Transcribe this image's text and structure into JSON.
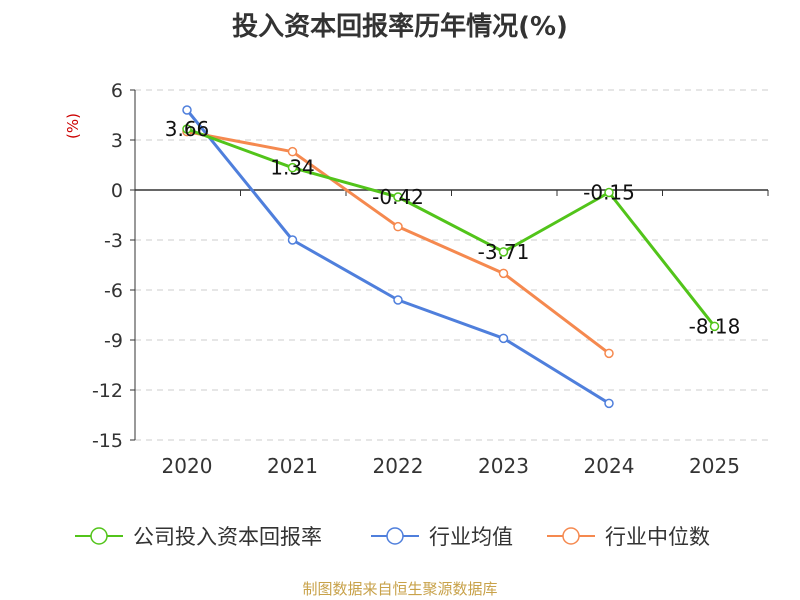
{
  "chart_data": {
    "type": "line",
    "title": "投入资本回报率历年情况(%)",
    "ylabel": "(%)",
    "xlabel": "",
    "categories": [
      "2020",
      "2021",
      "2022",
      "2023",
      "2024",
      "2025"
    ],
    "ylim": [
      -15,
      6
    ],
    "yticks": [
      6,
      3,
      0,
      -3,
      -6,
      -9,
      -12,
      -15
    ],
    "grid": true,
    "legend_position": "bottom",
    "series": [
      {
        "name": "公司投入资本回报率",
        "color": "#52c41a",
        "values": [
          3.66,
          1.34,
          -0.42,
          -3.71,
          -0.15,
          -8.18
        ],
        "labels": [
          "3.66",
          "1.34",
          "-0.42",
          "-3.71",
          "-0.15",
          "-8.18"
        ]
      },
      {
        "name": "行业均值",
        "color": "#4f7fdc",
        "values": [
          4.8,
          -3.0,
          -6.6,
          -8.9,
          -12.8,
          null
        ]
      },
      {
        "name": "行业中位数",
        "color": "#f5894f",
        "values": [
          3.5,
          2.3,
          -2.2,
          -5.0,
          -9.8,
          null
        ]
      }
    ]
  },
  "ui": {
    "title": "投入资本回报率历年情况(%)",
    "source": "制图数据来自恒生聚源数据库",
    "source_color": "#c8a24a",
    "ylabel_color": "#cc0000"
  }
}
